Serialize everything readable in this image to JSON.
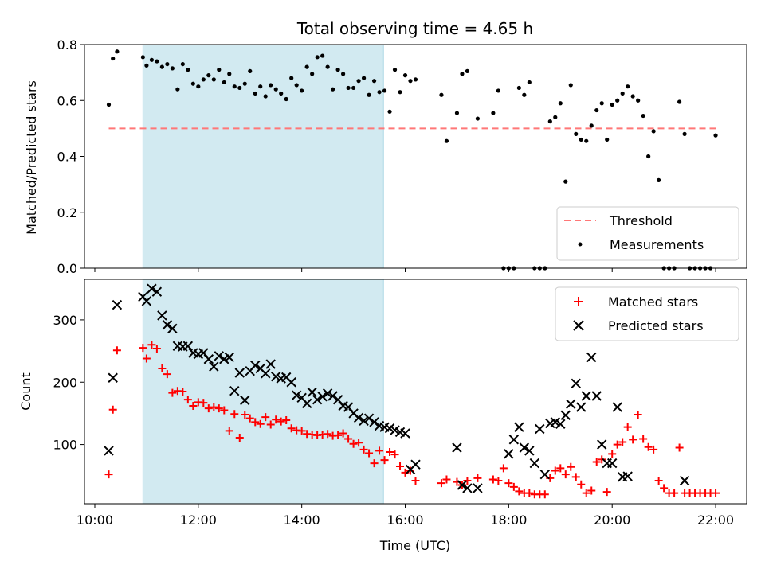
{
  "chart_data": [
    {
      "type": "scatter",
      "title": "Total observing time = 4.65 h",
      "xlabel": "",
      "ylabel": "Matched/Predicted stars",
      "xlim": [
        9.8,
        22.6
      ],
      "ylim": [
        0.0,
        0.8
      ],
      "y_ticks": [
        0.0,
        0.2,
        0.4,
        0.6,
        0.8
      ],
      "y_tick_labels": [
        "0.0",
        "0.2",
        "0.4",
        "0.6",
        "0.8"
      ],
      "shaded_span": [
        10.93,
        15.58
      ],
      "shaded_color": "#add8e6",
      "grid": false,
      "legend_position": "lower right",
      "series": [
        {
          "name": "Threshold",
          "style": "dashed-line",
          "color": "#ff7777",
          "x": [
            10.27,
            22.0
          ],
          "y": [
            0.5,
            0.5
          ]
        },
        {
          "name": "Measurements",
          "style": "dot",
          "color": "#000000",
          "x": [
            10.27,
            10.35,
            10.43,
            10.93,
            11.0,
            11.1,
            11.2,
            11.3,
            11.4,
            11.5,
            11.6,
            11.7,
            11.8,
            11.9,
            12.0,
            12.1,
            12.2,
            12.3,
            12.4,
            12.5,
            12.6,
            12.7,
            12.8,
            12.9,
            13.0,
            13.1,
            13.2,
            13.3,
            13.4,
            13.5,
            13.6,
            13.7,
            13.8,
            13.9,
            14.0,
            14.1,
            14.2,
            14.3,
            14.4,
            14.5,
            14.6,
            14.7,
            14.8,
            14.9,
            15.0,
            15.1,
            15.2,
            15.3,
            15.4,
            15.5,
            15.6,
            15.7,
            15.8,
            15.9,
            16.0,
            16.1,
            16.2,
            16.7,
            16.8,
            17.0,
            17.1,
            17.2,
            17.4,
            17.7,
            17.8,
            17.9,
            18.0,
            18.1,
            18.2,
            18.3,
            18.4,
            18.5,
            18.6,
            18.7,
            18.8,
            18.9,
            19.0,
            19.1,
            19.2,
            19.3,
            19.4,
            19.5,
            19.6,
            19.7,
            19.8,
            19.9,
            20.0,
            20.1,
            20.2,
            20.3,
            20.4,
            20.5,
            20.6,
            20.7,
            20.8,
            20.9,
            21.0,
            21.1,
            21.2,
            21.3,
            21.4,
            21.5,
            21.6,
            21.7,
            21.8,
            21.9,
            22.0
          ],
          "y": [
            0.585,
            0.75,
            0.775,
            0.755,
            0.725,
            0.745,
            0.74,
            0.72,
            0.73,
            0.715,
            0.64,
            0.73,
            0.71,
            0.66,
            0.65,
            0.675,
            0.69,
            0.675,
            0.71,
            0.665,
            0.695,
            0.65,
            0.645,
            0.66,
            0.705,
            0.625,
            0.65,
            0.615,
            0.655,
            0.64,
            0.625,
            0.605,
            0.68,
            0.655,
            0.635,
            0.72,
            0.695,
            0.755,
            0.76,
            0.72,
            0.64,
            0.71,
            0.695,
            0.645,
            0.645,
            0.67,
            0.68,
            0.62,
            0.67,
            0.63,
            0.635,
            0.56,
            0.71,
            0.63,
            0.69,
            0.67,
            0.675,
            0.62,
            0.455,
            0.555,
            0.695,
            0.705,
            0.535,
            0.555,
            0.635,
            0.0,
            0.0,
            0.0,
            0.645,
            0.62,
            0.665,
            0.0,
            0.0,
            0.0,
            0.525,
            0.54,
            0.59,
            0.31,
            0.655,
            0.48,
            0.46,
            0.455,
            0.51,
            0.565,
            0.59,
            0.46,
            0.585,
            0.6,
            0.625,
            0.65,
            0.615,
            0.6,
            0.545,
            0.4,
            0.49,
            0.315,
            0.0,
            0.0,
            0.0,
            0.595,
            0.48,
            0.0,
            0.0,
            0.0,
            0.0,
            0.0,
            0.475
          ]
        }
      ]
    },
    {
      "type": "scatter",
      "title": "",
      "xlabel": "Time (UTC)",
      "ylabel": "Count",
      "xlim": [
        9.8,
        22.6
      ],
      "ylim": [
        5,
        365
      ],
      "x_ticks": [
        10,
        12,
        14,
        16,
        18,
        20,
        22
      ],
      "x_tick_labels": [
        "10:00",
        "12:00",
        "14:00",
        "16:00",
        "18:00",
        "20:00",
        "22:00"
      ],
      "y_ticks": [
        100,
        200,
        300
      ],
      "y_tick_labels": [
        "100",
        "200",
        "300"
      ],
      "shaded_span": [
        10.93,
        15.58
      ],
      "shaded_color": "#add8e6",
      "grid": false,
      "legend_position": "upper right",
      "series": [
        {
          "name": "Matched stars",
          "marker": "plus",
          "color": "#ff0000",
          "x": [
            10.27,
            10.35,
            10.43,
            10.93,
            11.0,
            11.1,
            11.2,
            11.3,
            11.4,
            11.5,
            11.6,
            11.7,
            11.8,
            11.9,
            12.0,
            12.1,
            12.2,
            12.3,
            12.4,
            12.5,
            12.6,
            12.7,
            12.8,
            12.9,
            13.0,
            13.1,
            13.2,
            13.3,
            13.4,
            13.5,
            13.6,
            13.7,
            13.8,
            13.9,
            14.0,
            14.1,
            14.2,
            14.3,
            14.4,
            14.5,
            14.6,
            14.7,
            14.8,
            14.9,
            15.0,
            15.1,
            15.2,
            15.3,
            15.4,
            15.5,
            15.6,
            15.7,
            15.8,
            15.9,
            16.0,
            16.1,
            16.2,
            16.7,
            16.8,
            17.0,
            17.1,
            17.2,
            17.4,
            17.7,
            17.8,
            17.9,
            18.0,
            18.1,
            18.2,
            18.3,
            18.4,
            18.5,
            18.6,
            18.7,
            18.8,
            18.9,
            19.0,
            19.1,
            19.2,
            19.3,
            19.4,
            19.5,
            19.6,
            19.7,
            19.8,
            19.9,
            20.0,
            20.1,
            20.2,
            20.3,
            20.4,
            20.5,
            20.6,
            20.7,
            20.8,
            20.9,
            21.0,
            21.1,
            21.2,
            21.3,
            21.4,
            21.5,
            21.6,
            21.7,
            21.8,
            21.9,
            22.0
          ],
          "y": [
            52,
            156,
            251,
            255,
            238,
            260,
            254,
            222,
            213,
            183,
            186,
            185,
            172,
            162,
            168,
            167,
            158,
            160,
            158,
            155,
            122,
            149,
            111,
            148,
            142,
            136,
            133,
            144,
            132,
            140,
            137,
            139,
            126,
            123,
            122,
            117,
            116,
            115,
            116,
            117,
            114,
            115,
            118,
            109,
            101,
            103,
            92,
            86,
            70,
            90,
            75,
            88,
            84,
            65,
            55,
            58,
            42,
            38,
            44,
            40,
            35,
            42,
            46,
            44,
            42,
            62,
            38,
            32,
            25,
            22,
            22,
            20,
            20,
            20,
            46,
            58,
            62,
            52,
            64,
            48,
            36,
            22,
            26,
            72,
            76,
            24,
            85,
            100,
            104,
            128,
            108,
            148,
            109,
            96,
            92,
            42,
            30,
            22,
            22,
            95,
            22,
            22,
            22,
            22,
            22,
            22,
            22
          ]
        },
        {
          "name": "Predicted stars",
          "marker": "x",
          "color": "#000000",
          "x": [
            10.27,
            10.35,
            10.43,
            10.93,
            11.0,
            11.1,
            11.2,
            11.3,
            11.4,
            11.5,
            11.6,
            11.7,
            11.8,
            11.9,
            12.0,
            12.1,
            12.2,
            12.3,
            12.4,
            12.5,
            12.6,
            12.7,
            12.8,
            12.9,
            13.0,
            13.1,
            13.2,
            13.3,
            13.4,
            13.5,
            13.6,
            13.7,
            13.8,
            13.9,
            14.0,
            14.1,
            14.2,
            14.3,
            14.4,
            14.5,
            14.6,
            14.7,
            14.8,
            14.9,
            15.0,
            15.1,
            15.2,
            15.3,
            15.4,
            15.5,
            15.6,
            15.7,
            15.8,
            15.9,
            16.0,
            16.1,
            16.2,
            17.0,
            17.1,
            17.2,
            17.4,
            18.0,
            18.1,
            18.2,
            18.3,
            18.4,
            18.5,
            18.6,
            18.7,
            18.8,
            18.9,
            19.0,
            19.1,
            19.2,
            19.3,
            19.4,
            19.5,
            19.6,
            19.7,
            19.8,
            19.9,
            20.0,
            20.1,
            20.2,
            20.3,
            21.4
          ],
          "y": [
            90,
            207,
            324,
            337,
            330,
            350,
            345,
            307,
            292,
            286,
            258,
            257,
            258,
            247,
            245,
            247,
            237,
            225,
            242,
            237,
            240,
            186,
            215,
            171,
            218,
            227,
            222,
            214,
            229,
            209,
            206,
            208,
            200,
            179,
            175,
            166,
            184,
            172,
            177,
            182,
            178,
            172,
            162,
            160,
            150,
            143,
            138,
            142,
            136,
            130,
            128,
            126,
            123,
            120,
            118,
            60,
            68,
            95,
            35,
            30,
            30,
            85,
            108,
            128,
            95,
            90,
            70,
            125,
            52,
            134,
            136,
            133,
            147,
            165,
            198,
            160,
            178,
            240,
            178,
            100,
            70,
            70,
            160,
            48,
            49,
            42
          ]
        }
      ]
    }
  ]
}
